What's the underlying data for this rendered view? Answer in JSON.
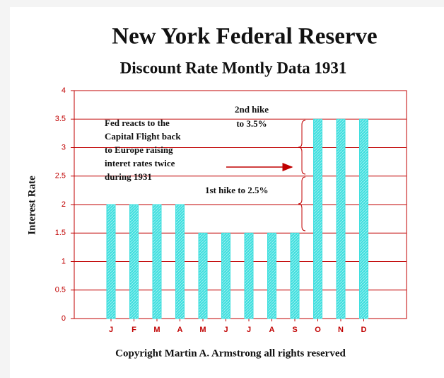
{
  "chart_data": {
    "type": "bar",
    "title": "New York Federal Reserve",
    "subtitle": "Discount Rate Montly Data 1931",
    "y_label": "Interest Rate",
    "footer": "Copyright Martin A. Armstrong all rights reserved",
    "categories": [
      "J",
      "F",
      "M",
      "A",
      "M",
      "J",
      "J",
      "A",
      "S",
      "O",
      "N",
      "D"
    ],
    "values": [
      2,
      2,
      2,
      2,
      1.5,
      1.5,
      1.5,
      1.5,
      1.5,
      3.5,
      3.5,
      3.5
    ],
    "color": "#3fdede",
    "grid_color": "#c00000",
    "ylim": [
      0,
      4
    ],
    "yticks": [
      0,
      0.5,
      1,
      1.5,
      2,
      2.5,
      3,
      3.5,
      4
    ],
    "grid": true,
    "annotations": [
      [
        "Fed reacts to the",
        "Capital Flight back",
        "to Europe raising",
        "interet rates twice",
        "during 1931"
      ],
      [
        "2nd hike",
        "to 3.5%"
      ],
      [
        "1st hike to 2.5%"
      ]
    ]
  }
}
